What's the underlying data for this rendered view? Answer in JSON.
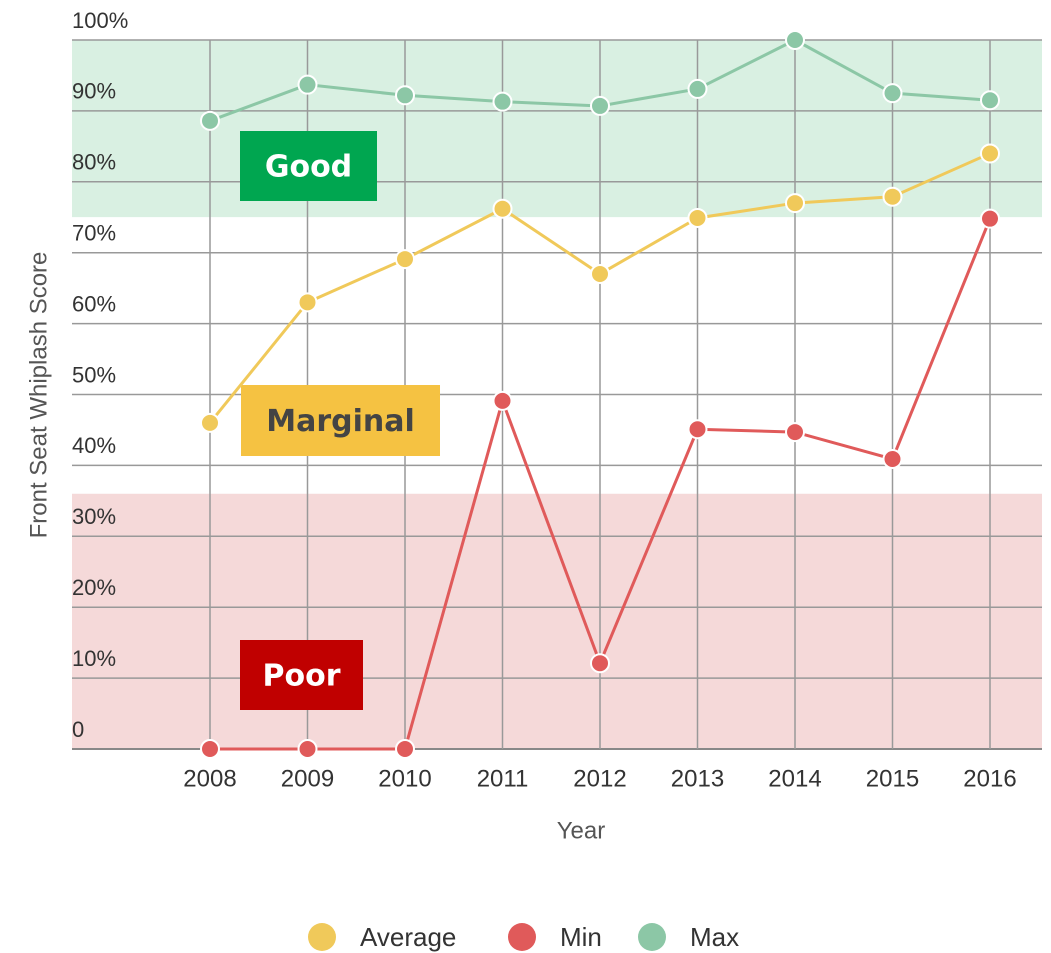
{
  "chart_data": {
    "type": "line",
    "y_label": "Front Seat Whiplash Score",
    "x_label": "Year",
    "categories": [
      "2008",
      "2009",
      "2010",
      "2011",
      "2012",
      "2013",
      "2014",
      "2015",
      "2016"
    ],
    "series": [
      {
        "name": "Average",
        "color": "#f0c95a",
        "values": [
          46,
          63,
          69.1,
          76.2,
          67,
          74.9,
          77,
          77.9,
          84
        ]
      },
      {
        "name": "Min",
        "color": "#e05a5a",
        "values": [
          0,
          0,
          0,
          49.1,
          12.1,
          45.1,
          44.7,
          40.9,
          74.8
        ]
      },
      {
        "name": "Max",
        "color": "#8cc7a6",
        "values": [
          88.6,
          93.7,
          92.2,
          91.3,
          90.7,
          93.1,
          100,
          92.5,
          91.5
        ]
      }
    ],
    "ylim": [
      0,
      100
    ],
    "yticks": [
      0,
      {
        "value": 10,
        "label": "10%"
      },
      {
        "value": 20,
        "label": "20%"
      },
      {
        "value": 30,
        "label": "30%"
      },
      {
        "value": 40,
        "label": "40%"
      },
      {
        "value": 50,
        "label": "50%"
      },
      {
        "value": 60,
        "label": "60%"
      },
      {
        "value": 70,
        "label": "70%"
      },
      {
        "value": 80,
        "label": "80%"
      },
      {
        "value": 90,
        "label": "90%"
      },
      {
        "value": 100,
        "label": "100%"
      }
    ],
    "grid": true,
    "legend": "bottom",
    "bands": [
      {
        "label": "Good",
        "from": 75,
        "to": 100,
        "color": "#d9f0e2",
        "label_color": "#00a650",
        "text_color": "#ffffff"
      },
      {
        "label": "Marginal",
        "from": 36,
        "to": 75,
        "color": "#ffffff",
        "label_color": "#f5c242",
        "text_color": "#444444"
      },
      {
        "label": "Poor",
        "from": 0,
        "to": 36,
        "color": "#f5d9d9",
        "label_color": "#c00000",
        "text_color": "#ffffff"
      }
    ]
  }
}
